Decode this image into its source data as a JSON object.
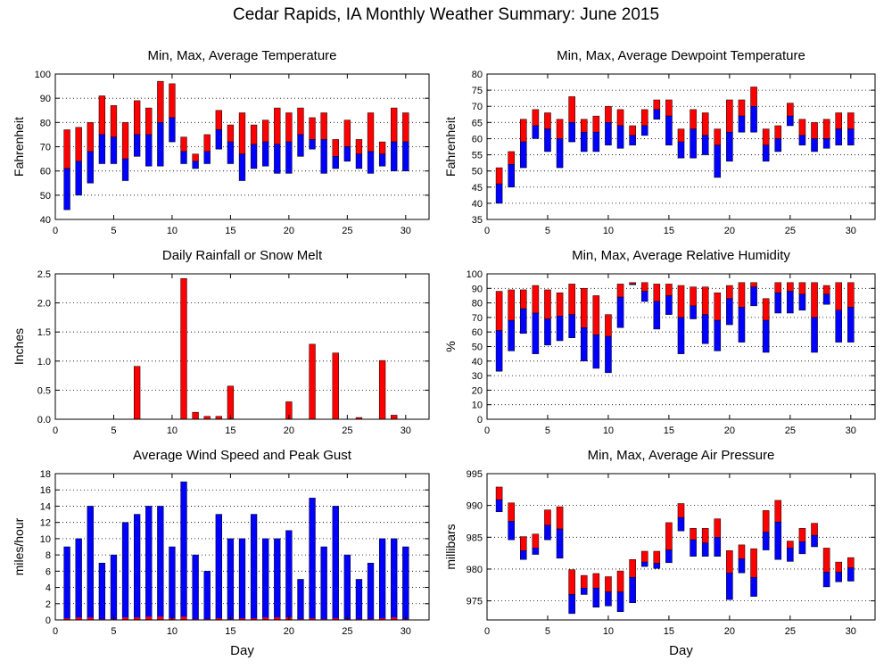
{
  "title": "Cedar Rapids, IA Monthly Weather Summary: June 2015",
  "colors": {
    "max": "#ff0000",
    "min": "#0000ff",
    "frame": "#000000"
  },
  "chart_data": [
    {
      "id": "temp",
      "type": "floating-bar",
      "title": "Min, Max, Average Temperature",
      "xlabel": "",
      "ylabel": "Fahrenheit",
      "xlim": [
        0,
        32
      ],
      "ylim": [
        40,
        100
      ],
      "xticks": [
        0,
        5,
        10,
        15,
        20,
        25,
        30
      ],
      "yticks": [
        40,
        50,
        60,
        70,
        80,
        90,
        100
      ],
      "days": [
        1,
        2,
        3,
        4,
        5,
        6,
        7,
        8,
        9,
        10,
        11,
        12,
        13,
        14,
        15,
        16,
        17,
        18,
        19,
        20,
        21,
        22,
        23,
        24,
        25,
        26,
        27,
        28,
        29,
        30
      ],
      "min": [
        44,
        50,
        55,
        63,
        63,
        56,
        66,
        62,
        62,
        72,
        63,
        61,
        63,
        69,
        63,
        56,
        61,
        62,
        59,
        59,
        66,
        69,
        59,
        61,
        64,
        61,
        59,
        62,
        60,
        60
      ],
      "avg": [
        61,
        64,
        68,
        75,
        74,
        65,
        75,
        75,
        80,
        82,
        68,
        64,
        68,
        77,
        72,
        67,
        71,
        72,
        71,
        72,
        75,
        73,
        73,
        66,
        70,
        67,
        68,
        67,
        72,
        72
      ],
      "max": [
        77,
        78,
        80,
        91,
        87,
        80,
        89,
        86,
        97,
        96,
        74,
        67,
        75,
        85,
        79,
        84,
        79,
        81,
        86,
        84,
        86,
        82,
        84,
        73,
        81,
        73,
        84,
        72,
        86,
        84
      ]
    },
    {
      "id": "dewpoint",
      "type": "floating-bar",
      "title": "Min, Max, Average Dewpoint Temperature",
      "xlabel": "",
      "ylabel": "Fahrenheit",
      "xlim": [
        0,
        32
      ],
      "ylim": [
        35,
        80
      ],
      "xticks": [
        0,
        5,
        10,
        15,
        20,
        25,
        30
      ],
      "yticks": [
        35,
        40,
        45,
        50,
        55,
        60,
        65,
        70,
        75,
        80
      ],
      "days": [
        1,
        2,
        3,
        4,
        5,
        6,
        7,
        8,
        9,
        10,
        11,
        12,
        13,
        14,
        15,
        16,
        17,
        18,
        19,
        20,
        21,
        22,
        23,
        24,
        25,
        26,
        27,
        28,
        29,
        30
      ],
      "min": [
        40,
        45,
        51,
        60,
        56,
        51,
        59,
        56,
        56,
        58,
        57,
        58,
        61,
        66,
        58,
        54,
        54,
        55,
        48,
        53,
        62,
        62,
        53,
        56,
        64,
        58,
        56,
        57,
        58,
        58
      ],
      "avg": [
        46,
        52,
        59,
        64,
        63,
        60,
        65,
        62,
        62,
        65,
        64,
        61,
        64,
        69,
        67,
        59,
        63,
        61,
        58,
        62,
        67,
        70,
        58,
        60,
        67,
        61,
        60,
        60,
        63,
        63
      ],
      "max": [
        51,
        56,
        66,
        69,
        68,
        66,
        73,
        66,
        67,
        70,
        69,
        64,
        69,
        72,
        72,
        63,
        69,
        68,
        63,
        72,
        72,
        76,
        63,
        64,
        71,
        66,
        65,
        66,
        68,
        68
      ]
    },
    {
      "id": "rain",
      "type": "bar",
      "title": "Daily Rainfall or Snow Melt",
      "xlabel": "",
      "ylabel": "Inches",
      "xlim": [
        0,
        32
      ],
      "ylim": [
        0,
        2.5
      ],
      "xticks": [
        0,
        5,
        10,
        15,
        20,
        25,
        30
      ],
      "yticks": [
        0.0,
        0.5,
        1.0,
        1.5,
        2.0,
        2.5
      ],
      "ytick_labels": [
        "0.0",
        "0.5",
        "1.0",
        "1.5",
        "2.0",
        "2.5"
      ],
      "days": [
        7,
        11,
        12,
        13,
        14,
        15,
        20,
        22,
        24,
        26,
        28,
        29
      ],
      "values": [
        0.91,
        2.42,
        0.12,
        0.05,
        0.05,
        0.57,
        0.3,
        1.29,
        1.14,
        0.03,
        1.01,
        0.07
      ]
    },
    {
      "id": "humidity",
      "type": "floating-bar",
      "title": "Min, Max, Average Relative Humidity",
      "xlabel": "",
      "ylabel": "%",
      "xlim": [
        0,
        32
      ],
      "ylim": [
        0,
        100
      ],
      "xticks": [
        0,
        5,
        10,
        15,
        20,
        25,
        30
      ],
      "yticks": [
        0,
        10,
        20,
        30,
        40,
        50,
        60,
        70,
        80,
        90,
        100
      ],
      "days": [
        1,
        2,
        3,
        4,
        5,
        6,
        7,
        8,
        9,
        10,
        11,
        12,
        13,
        14,
        15,
        16,
        17,
        18,
        19,
        20,
        21,
        22,
        23,
        24,
        25,
        26,
        27,
        28,
        29,
        30
      ],
      "min": [
        33,
        47,
        59,
        45,
        51,
        54,
        56,
        40,
        35,
        32,
        63,
        93,
        81,
        62,
        72,
        45,
        69,
        52,
        47,
        65,
        53,
        78,
        46,
        73,
        73,
        75,
        46,
        79,
        53,
        53
      ],
      "avg": [
        61,
        68,
        76,
        73,
        69,
        71,
        72,
        63,
        58,
        57,
        84,
        93,
        88,
        81,
        85,
        70,
        78,
        72,
        68,
        83,
        77,
        91,
        68,
        87,
        88,
        86,
        70,
        86,
        75,
        77
      ],
      "max": [
        88,
        89,
        89,
        92,
        89,
        87,
        93,
        90,
        85,
        72,
        93,
        94,
        94,
        93,
        93,
        92,
        91,
        91,
        87,
        92,
        94,
        94,
        83,
        94,
        94,
        94,
        94,
        92,
        94,
        94
      ]
    },
    {
      "id": "wind",
      "type": "bar",
      "title": "Average Wind Speed and Peak Gust",
      "xlabel": "Day",
      "ylabel": "miles/hour",
      "xlim": [
        0,
        32
      ],
      "ylim": [
        0,
        18
      ],
      "xticks": [
        0,
        5,
        10,
        15,
        20,
        25,
        30
      ],
      "yticks": [
        0,
        2,
        4,
        6,
        8,
        10,
        12,
        14,
        16,
        18
      ],
      "days": [
        1,
        2,
        3,
        4,
        5,
        6,
        7,
        8,
        9,
        10,
        11,
        12,
        13,
        14,
        15,
        16,
        17,
        18,
        19,
        20,
        21,
        22,
        23,
        24,
        25,
        26,
        27,
        28,
        29,
        30
      ],
      "average_speed": [
        9,
        10,
        14,
        7,
        8,
        12,
        13,
        14,
        14,
        9,
        17,
        8,
        6,
        13,
        10,
        10,
        13,
        10,
        10,
        11,
        5,
        15,
        9,
        14,
        8,
        5,
        7,
        10,
        10,
        9
      ],
      "peak_gust": [
        0.2,
        0.3,
        0.3,
        0.1,
        0.1,
        0.3,
        0.3,
        0.4,
        0.4,
        0.2,
        0.4,
        0.1,
        0.1,
        0.2,
        0.1,
        0.2,
        0.2,
        0.3,
        0.3,
        0.3,
        0.1,
        0.2,
        0.1,
        0.2,
        0.1,
        0.1,
        0.1,
        0.2,
        0.3,
        0.1
      ]
    },
    {
      "id": "pressure",
      "type": "floating-bar",
      "title": "Min, Max, Average Air Pressure",
      "xlabel": "Day",
      "ylabel": "millibars",
      "xlim": [
        0,
        32
      ],
      "ylim": [
        972,
        995
      ],
      "xticks": [
        0,
        5,
        10,
        15,
        20,
        25,
        30
      ],
      "yticks": [
        975,
        980,
        985,
        990,
        995
      ],
      "days": [
        1,
        2,
        3,
        4,
        5,
        6,
        7,
        8,
        9,
        10,
        11,
        12,
        13,
        14,
        15,
        16,
        17,
        18,
        19,
        20,
        21,
        22,
        23,
        24,
        25,
        26,
        27,
        28,
        29,
        30
      ],
      "min": [
        989,
        984.6,
        981.5,
        982.3,
        984.6,
        981.7,
        973,
        976,
        974,
        974.2,
        973.3,
        974.7,
        980.4,
        980.1,
        981,
        986,
        982,
        982,
        982,
        975.2,
        979.4,
        975.7,
        983,
        981.5,
        981.2,
        982.4,
        983.5,
        977.2,
        978,
        978.1
      ],
      "avg": [
        990.9,
        987.5,
        982.9,
        983.3,
        986.9,
        986.3,
        976,
        977,
        977,
        976.4,
        976.4,
        978.7,
        981.1,
        980.9,
        983,
        988.1,
        984.6,
        984.1,
        985,
        979.4,
        981.6,
        978.7,
        985.8,
        987.4,
        983.3,
        984.3,
        985.3,
        979.5,
        979.5,
        980.2
      ],
      "max": [
        992.9,
        990.4,
        985.1,
        985.5,
        989.3,
        989.8,
        979.9,
        979,
        979.3,
        978.8,
        979.7,
        981.5,
        982.8,
        982.8,
        987.3,
        990.3,
        986.4,
        986.4,
        987.9,
        982.9,
        983.8,
        983.2,
        989.2,
        990.8,
        984.4,
        986.4,
        987.2,
        983.3,
        981.1,
        981.8
      ]
    }
  ]
}
